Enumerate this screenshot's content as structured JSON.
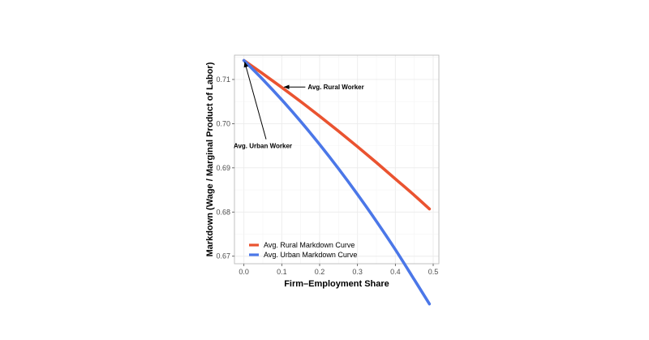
{
  "chart_data": {
    "type": "line",
    "title": "",
    "xlabel": "Firm–Employment Share",
    "ylabel": "Markdown (Wage / Marginal Product of Labor)",
    "xlim": [
      -0.025,
      0.515
    ],
    "ylim": [
      0.6683,
      0.7155
    ],
    "x_ticks": [
      0.0,
      0.1,
      0.2,
      0.3,
      0.4,
      0.5
    ],
    "x_tick_labels": [
      "0.0",
      "0.1",
      "0.2",
      "0.3",
      "0.4",
      "0.5"
    ],
    "y_ticks": [
      0.67,
      0.68,
      0.69,
      0.7,
      0.71
    ],
    "y_tick_labels": [
      "0.67",
      "0.68",
      "0.69",
      "0.70",
      "0.71"
    ],
    "grid": true,
    "legend_position": "bottom-left",
    "series": [
      {
        "name": "Avg. Rural Markdown Curve",
        "color": "#ea5330",
        "x": [
          0.0,
          0.05,
          0.1,
          0.15,
          0.2,
          0.25,
          0.3,
          0.35,
          0.4,
          0.45,
          0.49
        ],
        "y": [
          0.7143,
          0.7113,
          0.7082,
          0.705,
          0.7017,
          0.6983,
          0.6948,
          0.6912,
          0.6875,
          0.6838,
          0.6807
        ]
      },
      {
        "name": "Avg. Urban Markdown Curve",
        "color": "#4b77e8",
        "x": [
          0.0,
          0.05,
          0.1,
          0.15,
          0.2,
          0.25,
          0.3,
          0.35,
          0.4,
          0.45,
          0.49
        ],
        "y": [
          0.7143,
          0.71,
          0.7054,
          0.7005,
          0.6953,
          0.6898,
          0.684,
          0.6779,
          0.6715,
          0.6647,
          0.6592
        ]
      }
    ],
    "annotations": [
      {
        "text": "Avg. Rural Worker",
        "x_text": 0.243,
        "y_text": 0.7083,
        "x_point": 0.1,
        "y_point": 0.7083
      },
      {
        "text": "Avg. Urban Worker",
        "x_text": 0.05,
        "y_text": 0.695,
        "x_point": 0.0,
        "y_point": 0.7143
      }
    ]
  }
}
